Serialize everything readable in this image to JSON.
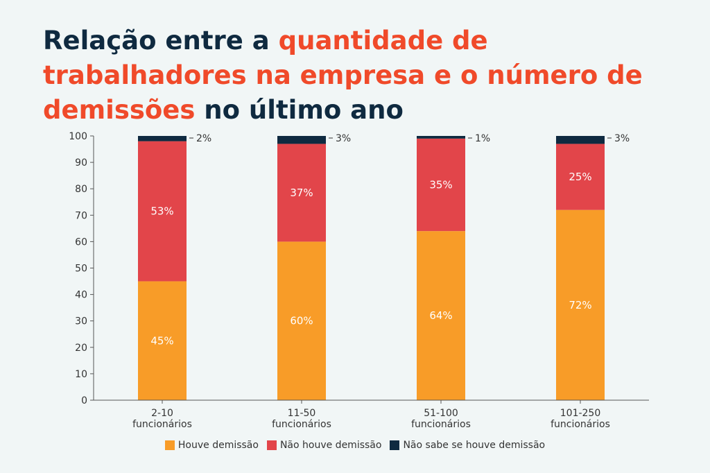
{
  "title": {
    "part1": "Relação entre a ",
    "highlight1": "quantidade de trabalhadores na empresa e o número de demissões",
    "part2": " no último ano"
  },
  "colors": {
    "houve": "#f89c28",
    "nao_houve": "#e2454a",
    "nao_sabe": "#0f2a40",
    "highlight": "#f04a2a",
    "title": "#0f2a40"
  },
  "chart_data": {
    "type": "bar",
    "stacked": true,
    "title": "Relação entre a quantidade de trabalhadores na empresa e o número de demissões no último ano",
    "categories": [
      [
        "2-10",
        "funcionários"
      ],
      [
        "11-50",
        "funcionários"
      ],
      [
        "51-100",
        "funcionários"
      ],
      [
        "101-250",
        "funcionários"
      ]
    ],
    "series": [
      {
        "name": "Houve demissão",
        "color_key": "houve",
        "values": [
          45,
          60,
          64,
          72
        ],
        "labels": [
          "45%",
          "60%",
          "64%",
          "72%"
        ]
      },
      {
        "name": "Não houve demissão",
        "color_key": "nao_houve",
        "values": [
          53,
          37,
          35,
          25
        ],
        "labels": [
          "53%",
          "37%",
          "35%",
          "25%"
        ]
      },
      {
        "name": "Não sabe se houve demissão",
        "color_key": "nao_sabe",
        "values": [
          2,
          3,
          1,
          3
        ],
        "labels": [
          "2%",
          "3%",
          "1%",
          "3%"
        ]
      }
    ],
    "ylim": [
      0,
      100
    ],
    "yticks": [
      0,
      10,
      20,
      30,
      40,
      50,
      60,
      70,
      80,
      90,
      100
    ],
    "xlabel": "",
    "ylabel": "",
    "grid": false,
    "legend": "bottom-center"
  }
}
